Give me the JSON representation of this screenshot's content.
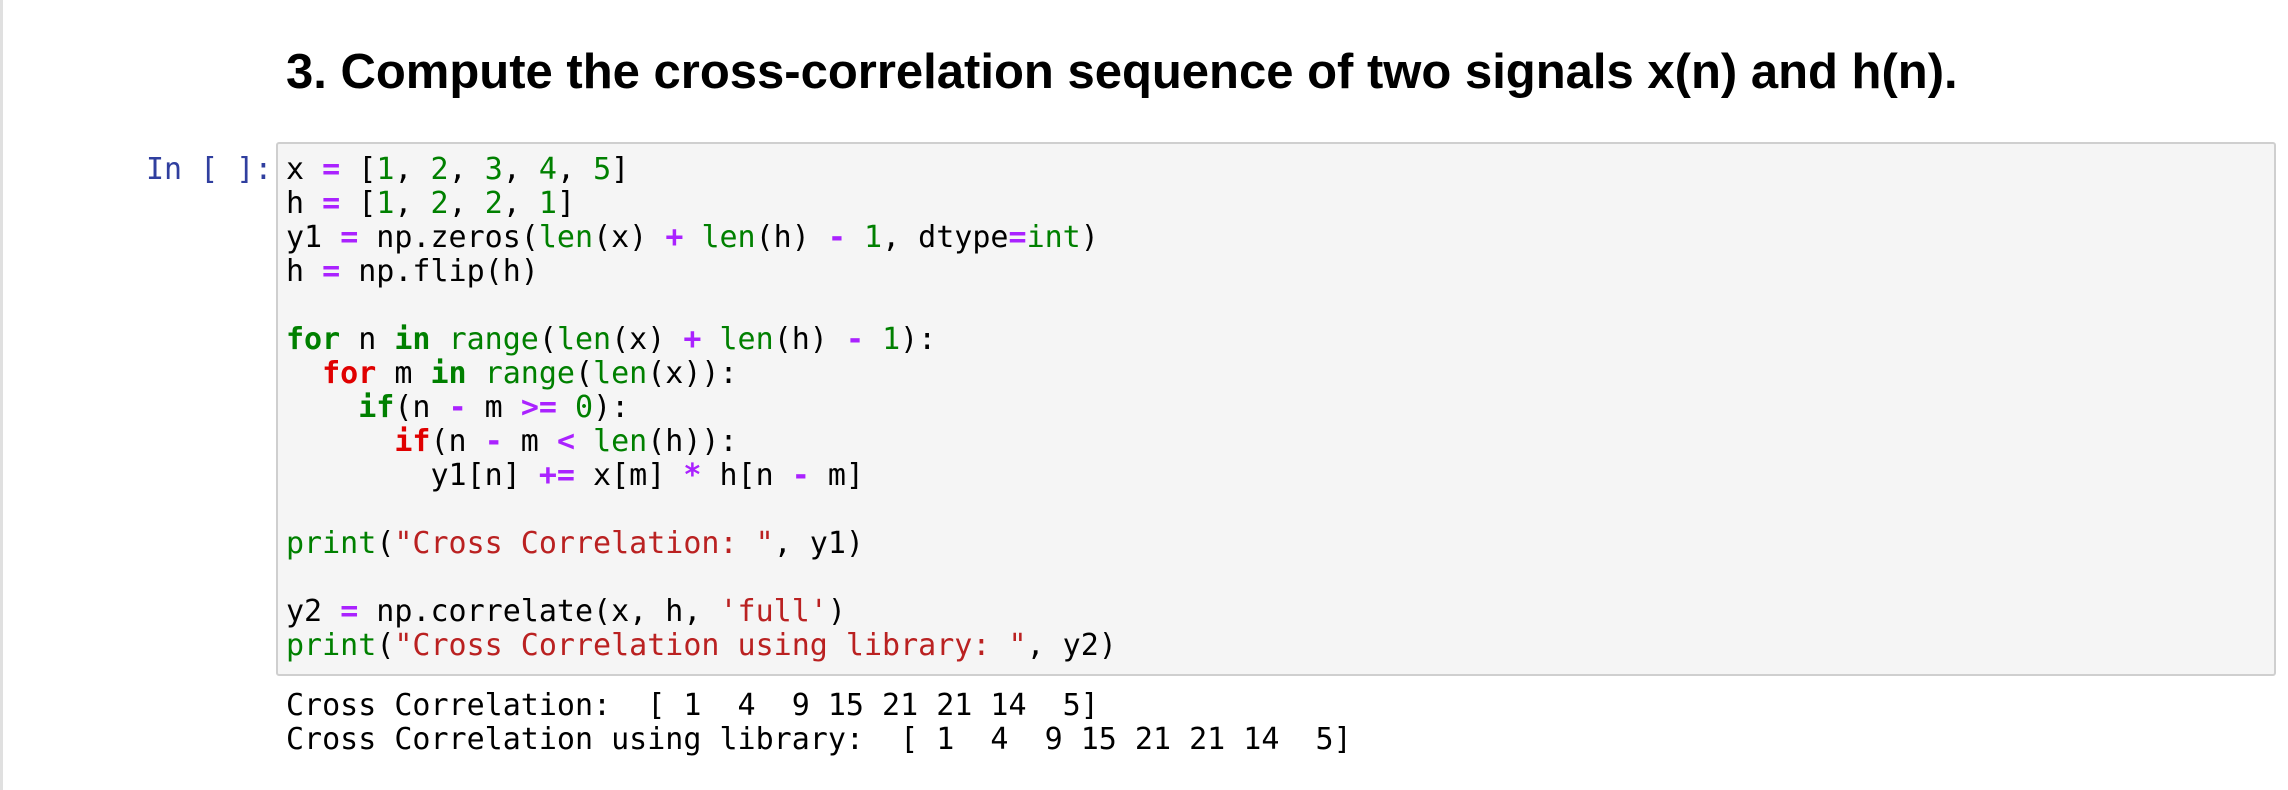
{
  "heading": "3. Compute the cross-correlation sequence of two signals x(n) and h(n).",
  "cell": {
    "prompt": "In [ ]:",
    "lines": [
      [
        [
          "x ",
          ""
        ],
        [
          "=",
          "op"
        ],
        [
          " [",
          ""
        ],
        [
          "1",
          "num"
        ],
        [
          ", ",
          ""
        ],
        [
          "2",
          "num"
        ],
        [
          ", ",
          ""
        ],
        [
          "3",
          "num"
        ],
        [
          ", ",
          ""
        ],
        [
          "4",
          "num"
        ],
        [
          ", ",
          ""
        ],
        [
          "5",
          "num"
        ],
        [
          "]",
          ""
        ]
      ],
      [
        [
          "h ",
          ""
        ],
        [
          "=",
          "op"
        ],
        [
          " [",
          ""
        ],
        [
          "1",
          "num"
        ],
        [
          ", ",
          ""
        ],
        [
          "2",
          "num"
        ],
        [
          ", ",
          ""
        ],
        [
          "2",
          "num"
        ],
        [
          ", ",
          ""
        ],
        [
          "1",
          "num"
        ],
        [
          "]",
          ""
        ]
      ],
      [
        [
          "y1 ",
          ""
        ],
        [
          "=",
          "op"
        ],
        [
          " np.zeros(",
          ""
        ],
        [
          "len",
          "bi"
        ],
        [
          "(x) ",
          ""
        ],
        [
          "+",
          "op"
        ],
        [
          " ",
          ""
        ],
        [
          "len",
          "bi"
        ],
        [
          "(h) ",
          ""
        ],
        [
          "-",
          "op"
        ],
        [
          " ",
          ""
        ],
        [
          "1",
          "num"
        ],
        [
          ", dtype",
          ""
        ],
        [
          "=",
          "op"
        ],
        [
          "int",
          "bi"
        ],
        [
          ")",
          ""
        ]
      ],
      [
        [
          "h ",
          ""
        ],
        [
          "=",
          "op"
        ],
        [
          " np.flip(h)",
          ""
        ]
      ],
      [],
      [
        [
          "for",
          "kw"
        ],
        [
          " n ",
          ""
        ],
        [
          "in",
          "kw"
        ],
        [
          " ",
          ""
        ],
        [
          "range",
          "bi"
        ],
        [
          "(",
          ""
        ],
        [
          "len",
          "bi"
        ],
        [
          "(x) ",
          ""
        ],
        [
          "+",
          "op"
        ],
        [
          " ",
          ""
        ],
        [
          "len",
          "bi"
        ],
        [
          "(h) ",
          ""
        ],
        [
          "-",
          "op"
        ],
        [
          " ",
          ""
        ],
        [
          "1",
          "num"
        ],
        [
          "):",
          ""
        ]
      ],
      [
        [
          "  ",
          ""
        ],
        [
          "for",
          "kw2"
        ],
        [
          " m ",
          ""
        ],
        [
          "in",
          "kw"
        ],
        [
          " ",
          ""
        ],
        [
          "range",
          "bi"
        ],
        [
          "(",
          ""
        ],
        [
          "len",
          "bi"
        ],
        [
          "(x)):",
          ""
        ]
      ],
      [
        [
          "    ",
          ""
        ],
        [
          "if",
          "kw"
        ],
        [
          "(n ",
          ""
        ],
        [
          "-",
          "op"
        ],
        [
          " m ",
          ""
        ],
        [
          ">=",
          "op"
        ],
        [
          " ",
          ""
        ],
        [
          "0",
          "num"
        ],
        [
          "):",
          ""
        ]
      ],
      [
        [
          "      ",
          ""
        ],
        [
          "if",
          "kw2"
        ],
        [
          "(n ",
          ""
        ],
        [
          "-",
          "op"
        ],
        [
          " m ",
          ""
        ],
        [
          "<",
          "op"
        ],
        [
          " ",
          ""
        ],
        [
          "len",
          "bi"
        ],
        [
          "(h)):",
          ""
        ]
      ],
      [
        [
          "        y1[n] ",
          ""
        ],
        [
          "+=",
          "op"
        ],
        [
          " x[m] ",
          ""
        ],
        [
          "*",
          "op"
        ],
        [
          " h[n ",
          ""
        ],
        [
          "-",
          "op"
        ],
        [
          " m]",
          ""
        ]
      ],
      [],
      [
        [
          "print",
          "bi"
        ],
        [
          "(",
          ""
        ],
        [
          "\"Cross Correlation: \"",
          "str"
        ],
        [
          ", y1)",
          ""
        ]
      ],
      [],
      [
        [
          "y2 ",
          ""
        ],
        [
          "=",
          "op"
        ],
        [
          " np.correlate(x, h, ",
          ""
        ],
        [
          "'full'",
          "str"
        ],
        [
          ")",
          ""
        ]
      ],
      [
        [
          "print",
          "bi"
        ],
        [
          "(",
          ""
        ],
        [
          "\"Cross Correlation using library: \"",
          "str"
        ],
        [
          ", y2)",
          ""
        ]
      ]
    ]
  },
  "output": {
    "lines": [
      "Cross Correlation:  [ 1  4  9 15 21 21 14  5]",
      "Cross Correlation using library:  [ 1  4  9 15 21 21 14  5]"
    ]
  }
}
